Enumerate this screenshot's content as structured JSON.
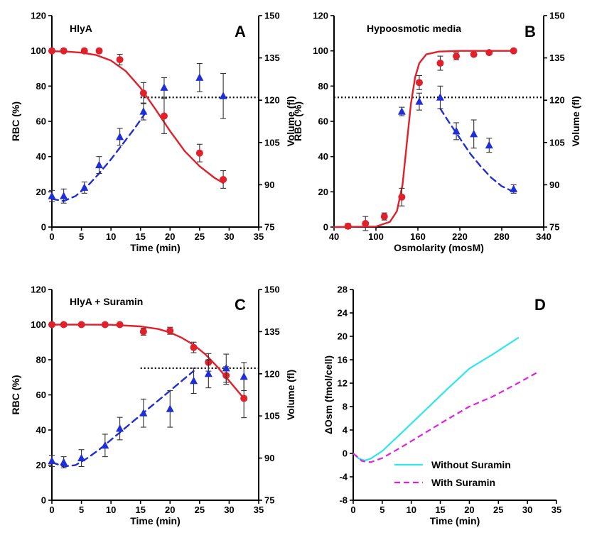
{
  "chart_data": [
    {
      "id": "A",
      "type": "scatter",
      "panel_letter": "A",
      "title": "HlyA",
      "xlabel": "Time (min)",
      "ylabel": "RBC (%)",
      "y2label": "Volume (fl)",
      "xlim": [
        0,
        35
      ],
      "xticks": [
        "0",
        "5",
        "10",
        "15",
        "20",
        "25",
        "30",
        "35"
      ],
      "ylim": [
        0,
        120
      ],
      "yticks": [
        "0",
        "20",
        "40",
        "60",
        "80",
        "100",
        "120"
      ],
      "y2lim": [
        75,
        150
      ],
      "y2ticks": [
        "75",
        "90",
        "105",
        "120",
        "135",
        "150"
      ],
      "reference_line": {
        "axis": "right",
        "value": 121,
        "x_range": [
          15,
          35
        ]
      },
      "series": [
        {
          "marker": "circle",
          "color": "#e0202a",
          "axis": "left",
          "x": [
            0,
            2,
            5.5,
            8,
            11.5,
            15.5,
            19,
            25,
            29
          ],
          "y": [
            100,
            100,
            100,
            100,
            95,
            76,
            63,
            42,
            27
          ],
          "err": [
            1,
            1,
            1,
            1,
            3,
            6,
            10,
            5,
            5
          ]
        },
        {
          "marker": "triangle",
          "color": "#1f2ed8",
          "axis": "right",
          "x": [
            0,
            2,
            5.5,
            8,
            11.5,
            15.5,
            19,
            25,
            29
          ],
          "y": [
            86,
            86,
            89,
            97,
            107,
            116,
            124.5,
            128,
            121.5
          ],
          "err": [
            2,
            2.5,
            2,
            3,
            3,
            3,
            3.5,
            5,
            8
          ]
        }
      ],
      "fits": [
        {
          "style": "solid",
          "color": "#e0202a",
          "axis": "left",
          "x": [
            0,
            2.5,
            5,
            7.5,
            10,
            12.5,
            15,
            17.5,
            20,
            22.5,
            25,
            27.5,
            29
          ],
          "y": [
            99.8,
            99.6,
            99,
            97.6,
            94.5,
            88.5,
            79,
            67,
            54.5,
            43,
            34.5,
            28,
            25
          ]
        },
        {
          "style": "dashed",
          "color": "#1f2ed8",
          "axis": "right",
          "x": [
            0,
            2,
            4,
            6,
            8,
            10,
            12,
            14,
            16
          ],
          "y": [
            85,
            84.2,
            86,
            89.5,
            94,
            99,
            104.5,
            110,
            116
          ]
        }
      ]
    },
    {
      "id": "B",
      "type": "scatter",
      "panel_letter": "B",
      "title": "Hypoosmotic media",
      "xlabel": "Osmolarity (mosM)",
      "ylabel": "RBC (%)",
      "y2label": "Volume (fl)",
      "xlim": [
        40,
        340
      ],
      "xticks": [
        "40",
        "100",
        "160",
        "220",
        "280",
        "340"
      ],
      "ylim": [
        0,
        120
      ],
      "yticks": [
        "0",
        "20",
        "40",
        "60",
        "80",
        "100",
        "120"
      ],
      "y2lim": [
        75,
        150
      ],
      "y2ticks": [
        "75",
        "90",
        "105",
        "120",
        "135",
        "150"
      ],
      "reference_line": {
        "axis": "right",
        "value": 121,
        "x_range": [
          40,
          340
        ]
      },
      "series": [
        {
          "marker": "circle",
          "color": "#e0202a",
          "axis": "left",
          "x": [
            60,
            85,
            112,
            137,
            162,
            192,
            215,
            240,
            262,
            297
          ],
          "y": [
            0.5,
            2,
            6,
            17,
            82,
            93,
            97,
            98,
            99,
            100
          ],
          "err": [
            1.5,
            4,
            2,
            5,
            4,
            4,
            2,
            1,
            1,
            1
          ]
        },
        {
          "marker": "triangle",
          "color": "#1f2ed8",
          "axis": "right",
          "x": [
            137,
            162,
            192,
            215,
            240,
            262,
            297
          ],
          "y": [
            116,
            119.5,
            121,
            109,
            108,
            104,
            88.5
          ],
          "err": [
            1.5,
            3,
            4,
            3,
            5,
            2.5,
            1.5
          ]
        }
      ],
      "fits": [
        {
          "style": "solid",
          "color": "#e0202a",
          "axis": "left",
          "x": [
            40,
            100,
            120,
            130,
            138,
            144,
            150,
            156,
            162,
            172,
            190,
            220,
            300
          ],
          "y": [
            0,
            0.3,
            3,
            9,
            24,
            47,
            70,
            85,
            93,
            98,
            99.6,
            100,
            100
          ]
        },
        {
          "style": "dashed",
          "color": "#1f2ed8",
          "axis": "right",
          "x": [
            192,
            205,
            220,
            235,
            250,
            265,
            280,
            297
          ],
          "y": [
            117,
            112,
            106.5,
            101,
            96.5,
            92.5,
            89.5,
            87.5
          ]
        }
      ]
    },
    {
      "id": "C",
      "type": "scatter",
      "panel_letter": "C",
      "title": "HlyA + Suramin",
      "xlabel": "Time (min)",
      "ylabel": "RBC (%)",
      "y2label": "Volume (fl)",
      "xlim": [
        0,
        35
      ],
      "xticks": [
        "0",
        "5",
        "10",
        "15",
        "20",
        "25",
        "30",
        "35"
      ],
      "ylim": [
        0,
        120
      ],
      "yticks": [
        "0",
        "20",
        "40",
        "60",
        "80",
        "100",
        "120"
      ],
      "y2lim": [
        75,
        150
      ],
      "y2ticks": [
        "75",
        "90",
        "105",
        "120",
        "135",
        "150"
      ],
      "reference_line": {
        "axis": "right",
        "value": 122,
        "x_range": [
          15,
          35
        ]
      },
      "series": [
        {
          "marker": "circle",
          "color": "#e0202a",
          "axis": "left",
          "x": [
            0,
            2,
            5,
            9,
            11.5,
            15.5,
            20,
            24,
            26.5,
            29.5,
            32.5
          ],
          "y": [
            100,
            100,
            100,
            100,
            100,
            96,
            96.5,
            87,
            78.5,
            71,
            58
          ],
          "err": [
            1,
            1,
            1,
            1,
            1,
            2,
            2,
            3,
            5,
            5,
            11
          ]
        },
        {
          "marker": "triangle",
          "color": "#1f2ed8",
          "axis": "right",
          "x": [
            0,
            2,
            5,
            9,
            11.5,
            15.5,
            20,
            24,
            26.5,
            29.5,
            32.5
          ],
          "y": [
            89,
            88.5,
            90,
            94.5,
            100.5,
            106,
            107.5,
            117.5,
            120,
            122,
            119
          ],
          "err": [
            2,
            2,
            3,
            4,
            4,
            5,
            6.5,
            4.5,
            5,
            5,
            5
          ]
        }
      ],
      "fits": [
        {
          "style": "solid",
          "color": "#e0202a",
          "axis": "left",
          "x": [
            0,
            5,
            10,
            15,
            18,
            20,
            22,
            24,
            26,
            28,
            30,
            32.5
          ],
          "y": [
            100,
            100,
            99.9,
            99,
            97.5,
            95.5,
            92.5,
            88.5,
            83,
            76,
            68,
            58
          ]
        },
        {
          "style": "dashed",
          "color": "#1f2ed8",
          "axis": "right",
          "x": [
            0,
            2,
            4,
            6,
            8,
            10,
            12,
            14,
            16,
            18,
            20,
            22,
            24
          ],
          "y": [
            88.5,
            87,
            87.5,
            90,
            93,
            96.5,
            100,
            103.5,
            107,
            110.5,
            114,
            117.5,
            121
          ]
        }
      ]
    },
    {
      "id": "D",
      "type": "line",
      "panel_letter": "D",
      "title": "",
      "xlabel": "Time (min)",
      "ylabel": "ΔOsm (fmol/cell)",
      "xlim": [
        0,
        35
      ],
      "xticks": [
        "0",
        "5",
        "10",
        "15",
        "20",
        "25",
        "30",
        "35"
      ],
      "ylim": [
        -8,
        28
      ],
      "yticks": [
        "-8",
        "-4",
        "0",
        "4",
        "8",
        "12",
        "16",
        "20",
        "24",
        "28"
      ],
      "legend_position": "bottom-right",
      "series": [
        {
          "name": "Without Suramin",
          "style": "solid",
          "color": "#2ee6ec",
          "x": [
            0,
            1,
            2,
            3,
            5,
            8,
            12,
            16,
            20,
            24,
            28.5
          ],
          "y": [
            0,
            -0.9,
            -1.2,
            -0.9,
            0.4,
            3.2,
            7,
            10.8,
            14.5,
            16.9,
            19.8
          ]
        },
        {
          "name": "With Suramin",
          "style": "dashed",
          "color": "#e020e0",
          "x": [
            0,
            1.5,
            3,
            5,
            8,
            12,
            16,
            20,
            24,
            28,
            32
          ],
          "y": [
            0,
            -1.3,
            -1.5,
            -0.8,
            0.9,
            3.3,
            5.7,
            8,
            9.7,
            11.8,
            14
          ]
        }
      ]
    }
  ]
}
